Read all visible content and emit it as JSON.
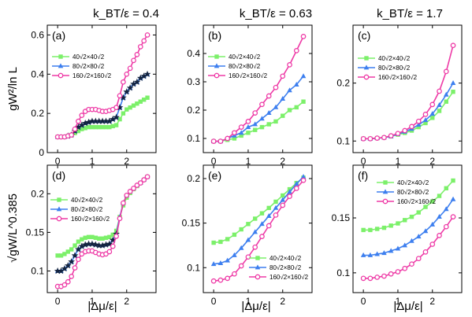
{
  "figure": {
    "column_titles": [
      "k_BT/ε = 0.4",
      "k_BT/ε = 0.63",
      "k_BT/ε = 1.7"
    ],
    "y_axis_titles": [
      "gW²/ln L",
      "√gW/L^0.385"
    ],
    "x_axis_title": "|Δμ/ε|",
    "legend_entries": [
      "40√2×40√2",
      "80√2×80√2",
      "160√2×160√2"
    ],
    "series_colors": {
      "40": "#7cf06a",
      "80": "#3d7fef",
      "160": "#ee3aa6",
      "star": "#13233f"
    }
  },
  "chart_data": [
    {
      "panel": "(a)",
      "type": "line",
      "xlim": [
        -0.3,
        2.85
      ],
      "ylim": [
        0.0,
        0.65
      ],
      "xticks": [
        0,
        1,
        2
      ],
      "yticks": [
        0,
        0.2,
        0.4,
        0.6
      ],
      "ytick_labels": [
        "0",
        "0.2",
        "0.4",
        "0.6"
      ],
      "legend": "top-left",
      "series": [
        {
          "name": "40√2×40√2",
          "size": "40",
          "marker": "square",
          "x": [
            0.0,
            0.1,
            0.2,
            0.3,
            0.4,
            0.5,
            0.6,
            0.7,
            0.8,
            0.9,
            1.0,
            1.1,
            1.2,
            1.3,
            1.4,
            1.5,
            1.6,
            1.7,
            1.8,
            1.9,
            2.0,
            2.1,
            2.2,
            2.3,
            2.4,
            2.5,
            2.6
          ],
          "y": [
            0.08,
            0.08,
            0.08,
            0.085,
            0.09,
            0.1,
            0.11,
            0.12,
            0.125,
            0.13,
            0.13,
            0.13,
            0.13,
            0.13,
            0.13,
            0.13,
            0.135,
            0.14,
            0.17,
            0.2,
            0.22,
            0.23,
            0.24,
            0.25,
            0.26,
            0.27,
            0.28
          ]
        },
        {
          "name": "80√2×80√2",
          "size": "80",
          "marker": "triangle",
          "x": [
            0.0,
            0.1,
            0.2,
            0.3,
            0.4,
            0.5,
            0.6,
            0.7,
            0.8,
            0.9,
            1.0,
            1.1,
            1.2,
            1.3,
            1.4,
            1.5,
            1.6,
            1.7,
            1.8,
            1.9,
            2.0,
            2.1,
            2.2,
            2.3,
            2.4,
            2.5,
            2.6
          ],
          "y": [
            0.08,
            0.08,
            0.08,
            0.085,
            0.09,
            0.11,
            0.13,
            0.14,
            0.15,
            0.155,
            0.16,
            0.16,
            0.16,
            0.16,
            0.16,
            0.16,
            0.17,
            0.18,
            0.23,
            0.28,
            0.31,
            0.33,
            0.35,
            0.36,
            0.38,
            0.39,
            0.4
          ]
        },
        {
          "name": "",
          "size": "star",
          "marker": "star",
          "x": [
            0.3,
            0.4,
            0.5,
            0.6,
            0.7,
            0.8,
            0.9,
            1.0,
            1.1,
            1.2,
            1.3,
            1.4,
            1.5,
            1.6,
            1.7,
            1.8,
            1.9,
            2.0,
            2.1,
            2.2,
            2.3,
            2.4,
            2.5,
            2.6
          ],
          "y": [
            0.085,
            0.09,
            0.11,
            0.13,
            0.14,
            0.15,
            0.155,
            0.16,
            0.16,
            0.16,
            0.16,
            0.16,
            0.16,
            0.17,
            0.18,
            0.23,
            0.28,
            0.31,
            0.33,
            0.35,
            0.36,
            0.38,
            0.39,
            0.4
          ]
        },
        {
          "name": "160√2×160√2",
          "size": "160",
          "marker": "circle",
          "x": [
            0.0,
            0.1,
            0.2,
            0.3,
            0.4,
            0.5,
            0.6,
            0.7,
            0.8,
            0.9,
            1.0,
            1.1,
            1.2,
            1.3,
            1.4,
            1.5,
            1.6,
            1.7,
            1.8,
            1.9,
            2.0,
            2.1,
            2.2,
            2.3,
            2.4,
            2.5,
            2.6
          ],
          "y": [
            0.08,
            0.08,
            0.08,
            0.085,
            0.09,
            0.12,
            0.16,
            0.19,
            0.21,
            0.22,
            0.22,
            0.22,
            0.215,
            0.21,
            0.21,
            0.215,
            0.22,
            0.23,
            0.29,
            0.36,
            0.4,
            0.43,
            0.47,
            0.5,
            0.54,
            0.57,
            0.6
          ]
        }
      ]
    },
    {
      "panel": "(b)",
      "type": "line",
      "xlim": [
        -0.3,
        2.85
      ],
      "ylim": [
        0.05,
        0.5
      ],
      "xticks": [
        0,
        1,
        2
      ],
      "yticks": [
        0.1,
        0.2,
        0.3,
        0.4
      ],
      "ytick_labels": [
        "0.1",
        "0.2",
        "0.3",
        "0.4"
      ],
      "legend": "top-left",
      "series": [
        {
          "name": "40√2×40√2",
          "size": "40",
          "marker": "square",
          "x": [
            0.0,
            0.2,
            0.4,
            0.6,
            0.8,
            1.0,
            1.2,
            1.4,
            1.6,
            1.8,
            2.0,
            2.2,
            2.4,
            2.6
          ],
          "y": [
            0.09,
            0.09,
            0.095,
            0.1,
            0.11,
            0.12,
            0.13,
            0.14,
            0.15,
            0.16,
            0.18,
            0.2,
            0.21,
            0.23
          ]
        },
        {
          "name": "80√2×80√2",
          "size": "80",
          "marker": "triangle",
          "x": [
            0.0,
            0.2,
            0.4,
            0.6,
            0.8,
            1.0,
            1.2,
            1.4,
            1.6,
            1.8,
            2.0,
            2.2,
            2.4,
            2.6
          ],
          "y": [
            0.09,
            0.09,
            0.1,
            0.11,
            0.12,
            0.14,
            0.15,
            0.17,
            0.19,
            0.21,
            0.24,
            0.27,
            0.29,
            0.32
          ]
        },
        {
          "name": "160√2×160√2",
          "size": "160",
          "marker": "circle",
          "x": [
            0.0,
            0.2,
            0.4,
            0.6,
            0.8,
            1.0,
            1.2,
            1.4,
            1.6,
            1.8,
            2.0,
            2.2,
            2.4,
            2.6
          ],
          "y": [
            0.09,
            0.09,
            0.1,
            0.12,
            0.14,
            0.16,
            0.19,
            0.22,
            0.25,
            0.28,
            0.32,
            0.36,
            0.41,
            0.46
          ]
        }
      ]
    },
    {
      "panel": "(c)",
      "type": "line",
      "xlim": [
        -0.3,
        2.85
      ],
      "ylim": [
        0.08,
        0.3
      ],
      "xticks": [
        0,
        1,
        2
      ],
      "yticks": [
        0.1,
        0.2
      ],
      "ytick_labels": [
        "0.1",
        "0.2"
      ],
      "legend": "top-left",
      "series": [
        {
          "name": "40√2×40√2",
          "size": "40",
          "marker": "square",
          "x": [
            0.0,
            0.2,
            0.4,
            0.6,
            0.8,
            1.0,
            1.2,
            1.4,
            1.6,
            1.8,
            2.0,
            2.2,
            2.4,
            2.6
          ],
          "y": [
            0.104,
            0.104,
            0.105,
            0.106,
            0.108,
            0.111,
            0.114,
            0.118,
            0.124,
            0.131,
            0.14,
            0.152,
            0.168,
            0.185
          ]
        },
        {
          "name": "80√2×80√2",
          "size": "80",
          "marker": "triangle",
          "x": [
            0.0,
            0.2,
            0.4,
            0.6,
            0.8,
            1.0,
            1.2,
            1.4,
            1.6,
            1.8,
            2.0,
            2.2,
            2.4,
            2.6
          ],
          "y": [
            0.104,
            0.104,
            0.105,
            0.106,
            0.108,
            0.112,
            0.116,
            0.121,
            0.128,
            0.136,
            0.147,
            0.162,
            0.18,
            0.2
          ]
        },
        {
          "name": "160√2×160√2",
          "size": "160",
          "marker": "circle",
          "x": [
            0.0,
            0.2,
            0.4,
            0.6,
            0.8,
            1.0,
            1.2,
            1.4,
            1.6,
            1.8,
            2.0,
            2.2,
            2.4,
            2.6
          ],
          "y": [
            0.104,
            0.104,
            0.105,
            0.106,
            0.109,
            0.113,
            0.118,
            0.125,
            0.134,
            0.146,
            0.163,
            0.186,
            0.22,
            0.265
          ]
        }
      ]
    },
    {
      "panel": "(d)",
      "type": "line",
      "xlim": [
        -0.3,
        2.85
      ],
      "ylim": [
        0.072,
        0.237
      ],
      "xticks": [
        0,
        1,
        2
      ],
      "yticks": [
        0.1,
        0.15,
        0.2
      ],
      "ytick_labels": [
        "0.1",
        "0.15",
        "0.2"
      ],
      "legend": "center-left",
      "series": [
        {
          "name": "40√2×40√2",
          "size": "40",
          "marker": "square",
          "x": [
            0.0,
            0.1,
            0.2,
            0.3,
            0.4,
            0.5,
            0.6,
            0.7,
            0.8,
            0.9,
            1.0,
            1.1,
            1.2,
            1.3,
            1.4,
            1.5,
            1.6,
            1.7,
            1.8,
            1.9,
            2.0,
            2.1,
            2.2,
            2.3,
            2.4,
            2.5,
            2.6
          ],
          "y": [
            0.12,
            0.12,
            0.122,
            0.125,
            0.128,
            0.133,
            0.138,
            0.141,
            0.143,
            0.144,
            0.144,
            0.143,
            0.142,
            0.142,
            0.143,
            0.144,
            0.147,
            0.152,
            0.17,
            0.185,
            0.195,
            0.201,
            0.206,
            0.21,
            0.214,
            0.218,
            0.222
          ]
        },
        {
          "name": "80√2×80√2",
          "size": "80",
          "marker": "triangle",
          "x": [
            0.0,
            0.1,
            0.2,
            0.3,
            0.4,
            0.5,
            0.6,
            0.7,
            0.8,
            0.9,
            1.0,
            1.1,
            1.2,
            1.3,
            1.4,
            1.5,
            1.6,
            1.7,
            1.8,
            1.9,
            2.0,
            2.1,
            2.2,
            2.3,
            2.4,
            2.5,
            2.6
          ],
          "y": [
            0.1,
            0.1,
            0.103,
            0.107,
            0.112,
            0.12,
            0.128,
            0.132,
            0.134,
            0.135,
            0.135,
            0.134,
            0.133,
            0.133,
            0.134,
            0.135,
            0.14,
            0.148,
            0.17,
            0.188,
            0.198,
            0.203,
            0.207,
            0.211,
            0.214,
            0.218,
            0.222
          ]
        },
        {
          "name": "",
          "size": "star",
          "marker": "star",
          "x": [
            0.0,
            0.1,
            0.2,
            0.3,
            0.4,
            0.5,
            0.6,
            0.7,
            0.8,
            0.9,
            1.0,
            1.1,
            1.2,
            1.3,
            1.4,
            1.5,
            1.6,
            1.7
          ],
          "y": [
            0.1,
            0.1,
            0.103,
            0.107,
            0.112,
            0.12,
            0.128,
            0.132,
            0.134,
            0.135,
            0.135,
            0.134,
            0.133,
            0.133,
            0.134,
            0.135,
            0.14,
            0.148
          ]
        },
        {
          "name": "160√2×160√2",
          "size": "160",
          "marker": "circle",
          "x": [
            0.0,
            0.1,
            0.2,
            0.3,
            0.4,
            0.5,
            0.6,
            0.7,
            0.8,
            0.9,
            1.0,
            1.1,
            1.2,
            1.3,
            1.4,
            1.5,
            1.6,
            1.7,
            1.8,
            1.9,
            2.0,
            2.1,
            2.2,
            2.3,
            2.4,
            2.5,
            2.6
          ],
          "y": [
            0.08,
            0.08,
            0.082,
            0.086,
            0.093,
            0.104,
            0.115,
            0.122,
            0.125,
            0.126,
            0.126,
            0.124,
            0.122,
            0.121,
            0.122,
            0.125,
            0.132,
            0.145,
            0.168,
            0.188,
            0.198,
            0.203,
            0.207,
            0.211,
            0.214,
            0.218,
            0.222
          ]
        }
      ]
    },
    {
      "panel": "(e)",
      "type": "line",
      "xlim": [
        -0.3,
        2.85
      ],
      "ylim": [
        0.072,
        0.215
      ],
      "xticks": [
        0,
        1,
        2
      ],
      "yticks": [
        0.1,
        0.15,
        0.2
      ],
      "ytick_labels": [
        "0.1",
        "0.15",
        "0.2"
      ],
      "legend": "bottom-right",
      "series": [
        {
          "name": "40√2×40√2",
          "size": "40",
          "marker": "square",
          "x": [
            0.0,
            0.2,
            0.4,
            0.6,
            0.8,
            1.0,
            1.2,
            1.4,
            1.6,
            1.8,
            2.0,
            2.2,
            2.4,
            2.6
          ],
          "y": [
            0.128,
            0.129,
            0.132,
            0.137,
            0.143,
            0.149,
            0.155,
            0.161,
            0.167,
            0.174,
            0.181,
            0.188,
            0.195,
            0.201
          ]
        },
        {
          "name": "80√2×80√2",
          "size": "80",
          "marker": "triangle",
          "x": [
            0.0,
            0.2,
            0.4,
            0.6,
            0.8,
            1.0,
            1.2,
            1.4,
            1.6,
            1.8,
            2.0,
            2.2,
            2.4,
            2.6
          ],
          "y": [
            0.104,
            0.105,
            0.108,
            0.114,
            0.122,
            0.131,
            0.14,
            0.149,
            0.158,
            0.167,
            0.176,
            0.185,
            0.194,
            0.202
          ]
        },
        {
          "name": "160√2×160√2",
          "size": "160",
          "marker": "circle",
          "x": [
            0.0,
            0.2,
            0.4,
            0.6,
            0.8,
            1.0,
            1.2,
            1.4,
            1.6,
            1.8,
            2.0,
            2.2,
            2.4,
            2.6
          ],
          "y": [
            0.085,
            0.086,
            0.088,
            0.093,
            0.102,
            0.112,
            0.123,
            0.135,
            0.147,
            0.159,
            0.17,
            0.18,
            0.189,
            0.198
          ]
        }
      ]
    },
    {
      "panel": "(f)",
      "type": "line",
      "xlim": [
        -0.3,
        2.85
      ],
      "ylim": [
        0.082,
        0.198
      ],
      "xticks": [
        0,
        1,
        2
      ],
      "yticks": [
        0.1,
        0.15
      ],
      "ytick_labels": [
        "0.1",
        "0.15"
      ],
      "legend": "top-left",
      "series": [
        {
          "name": "40√2×40√2",
          "size": "40",
          "marker": "square",
          "x": [
            0.0,
            0.2,
            0.4,
            0.6,
            0.8,
            1.0,
            1.2,
            1.4,
            1.6,
            1.8,
            2.0,
            2.2,
            2.4,
            2.6
          ],
          "y": [
            0.139,
            0.139,
            0.14,
            0.141,
            0.143,
            0.145,
            0.148,
            0.151,
            0.155,
            0.16,
            0.165,
            0.17,
            0.177,
            0.184
          ]
        },
        {
          "name": "80√2×80√2",
          "size": "80",
          "marker": "triangle",
          "x": [
            0.0,
            0.2,
            0.4,
            0.6,
            0.8,
            1.0,
            1.2,
            1.4,
            1.6,
            1.8,
            2.0,
            2.2,
            2.4,
            2.6
          ],
          "y": [
            0.116,
            0.116,
            0.117,
            0.118,
            0.12,
            0.122,
            0.125,
            0.129,
            0.133,
            0.138,
            0.144,
            0.151,
            0.158,
            0.167
          ]
        },
        {
          "name": "160√2×160√2",
          "size": "160",
          "marker": "circle",
          "x": [
            0.0,
            0.2,
            0.4,
            0.6,
            0.8,
            1.0,
            1.2,
            1.4,
            1.6,
            1.8,
            2.0,
            2.2,
            2.4,
            2.6
          ],
          "y": [
            0.095,
            0.095,
            0.096,
            0.097,
            0.099,
            0.101,
            0.104,
            0.108,
            0.113,
            0.119,
            0.126,
            0.134,
            0.142,
            0.151
          ]
        }
      ]
    }
  ]
}
